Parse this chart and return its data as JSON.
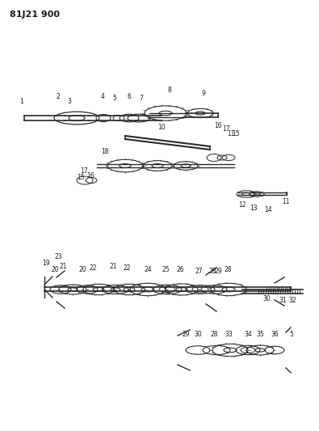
{
  "title": "81J21 900",
  "bg_color": "#ffffff",
  "line_color": "#2a2a2a",
  "text_color": "#1a1a1a",
  "figsize": [
    3.95,
    5.33
  ],
  "dpi": 100
}
